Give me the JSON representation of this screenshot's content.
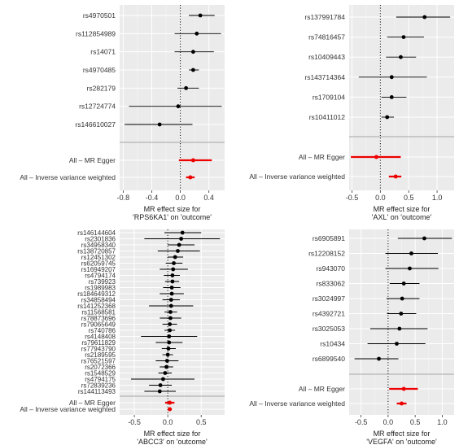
{
  "chart_data": [
    {
      "type": "forest",
      "xlabel": [
        "MR effect size for",
        "'RPS6KA1' on 'outcome'"
      ],
      "xticks": [
        "-0.8",
        "-0.4",
        "0.0",
        "0.4"
      ],
      "xlim": [
        -0.85,
        0.62
      ],
      "grid": true,
      "snps": [
        {
          "label": "rs4970501",
          "est": 0.28,
          "lo": 0.12,
          "hi": 0.48
        },
        {
          "label": "rs112854989",
          "est": 0.23,
          "lo": -0.08,
          "hi": 0.57
        },
        {
          "label": "rs14071",
          "est": 0.18,
          "lo": -0.08,
          "hi": 0.47
        },
        {
          "label": "rs4970485",
          "est": 0.18,
          "lo": 0.12,
          "hi": 0.26
        },
        {
          "label": "rs282179",
          "est": 0.08,
          "lo": -0.04,
          "hi": 0.26
        },
        {
          "label": "rs12724774",
          "est": -0.03,
          "lo": -0.72,
          "hi": 0.58
        },
        {
          "label": "rs146610027",
          "est": -0.29,
          "lo": -0.78,
          "hi": 0.17
        }
      ],
      "summaries": [
        {
          "label": "All – MR Egger",
          "est": 0.18,
          "lo": -0.02,
          "hi": 0.44
        },
        {
          "label": "All – Inverse variance weighted",
          "est": 0.14,
          "lo": 0.08,
          "hi": 0.2
        }
      ]
    },
    {
      "type": "forest",
      "xlabel": [
        "MR effect size for",
        "'AXL' on 'outcome'"
      ],
      "xticks": [
        "-0.5",
        "0.0",
        "0.5",
        "1.0"
      ],
      "xlim": [
        -0.55,
        1.3
      ],
      "grid": true,
      "snps": [
        {
          "label": "rs137991784",
          "est": 0.78,
          "lo": 0.28,
          "hi": 1.23
        },
        {
          "label": "rs74816457",
          "est": 0.41,
          "lo": 0.12,
          "hi": 0.77
        },
        {
          "label": "rs10409443",
          "est": 0.36,
          "lo": 0.1,
          "hi": 0.63
        },
        {
          "label": "rs143714364",
          "est": 0.2,
          "lo": -0.38,
          "hi": 0.82
        },
        {
          "label": "rs1709104",
          "est": 0.2,
          "lo": 0.02,
          "hi": 0.46
        },
        {
          "label": "rs10411012",
          "est": 0.12,
          "lo": 0.02,
          "hi": 0.24
        }
      ],
      "summaries": [
        {
          "label": "All – MR Egger",
          "est": -0.07,
          "lo": -0.52,
          "hi": 0.36
        },
        {
          "label": "All – Inverse variance weighted",
          "est": 0.27,
          "lo": 0.15,
          "hi": 0.37
        }
      ]
    },
    {
      "type": "forest",
      "xlabel": [
        "MR effect size for",
        "'ABCC3' on 'outcome'"
      ],
      "xticks": [
        "-0.5",
        "0.0",
        "0.5"
      ],
      "xlim": [
        -0.72,
        0.85
      ],
      "grid": true,
      "snps": [
        {
          "label": "rs146144604",
          "est": 0.22,
          "lo": -0.05,
          "hi": 0.5
        },
        {
          "label": "rs2301836",
          "est": 0.2,
          "lo": -0.35,
          "hi": 0.78
        },
        {
          "label": "rs34958340",
          "est": 0.17,
          "lo": 0.0,
          "hi": 0.4
        },
        {
          "label": "rs138720857",
          "est": 0.15,
          "lo": -0.15,
          "hi": 0.48
        },
        {
          "label": "rs12451302",
          "est": 0.11,
          "lo": 0.0,
          "hi": 0.23
        },
        {
          "label": "rs62059745",
          "est": 0.09,
          "lo": -0.03,
          "hi": 0.22
        },
        {
          "label": "rs16949207",
          "est": 0.08,
          "lo": -0.12,
          "hi": 0.3
        },
        {
          "label": "rs4794174",
          "est": 0.07,
          "lo": -0.06,
          "hi": 0.18
        },
        {
          "label": "rs739923",
          "est": 0.07,
          "lo": -0.04,
          "hi": 0.17
        },
        {
          "label": "rs1989983",
          "est": 0.06,
          "lo": -0.07,
          "hi": 0.19
        },
        {
          "label": "rs184649312",
          "est": 0.06,
          "lo": -0.12,
          "hi": 0.24
        },
        {
          "label": "rs34858494",
          "est": 0.05,
          "lo": -0.08,
          "hi": 0.18
        },
        {
          "label": "rs141252368",
          "est": 0.05,
          "lo": -0.28,
          "hi": 0.38
        },
        {
          "label": "rs11568581",
          "est": 0.04,
          "lo": -0.05,
          "hi": 0.14
        },
        {
          "label": "rs78873696",
          "est": 0.04,
          "lo": -0.12,
          "hi": 0.2
        },
        {
          "label": "rs79065649",
          "est": 0.03,
          "lo": -0.08,
          "hi": 0.14
        },
        {
          "label": "rs740786",
          "est": 0.03,
          "lo": -0.05,
          "hi": 0.11
        },
        {
          "label": "rs4148408",
          "est": 0.02,
          "lo": -0.4,
          "hi": 0.44
        },
        {
          "label": "rs79611829",
          "est": 0.02,
          "lo": -0.18,
          "hi": 0.22
        },
        {
          "label": "rs77943790",
          "est": 0.01,
          "lo": -0.09,
          "hi": 0.12
        },
        {
          "label": "rs2189595",
          "est": 0.0,
          "lo": -0.08,
          "hi": 0.08
        },
        {
          "label": "rs76521597",
          "est": -0.01,
          "lo": -0.18,
          "hi": 0.16
        },
        {
          "label": "rs2072366",
          "est": -0.02,
          "lo": -0.12,
          "hi": 0.08
        },
        {
          "label": "rs1548529",
          "est": -0.04,
          "lo": -0.14,
          "hi": 0.06
        },
        {
          "label": "rs4794175",
          "est": -0.07,
          "lo": -0.55,
          "hi": 0.4
        },
        {
          "label": "rs72839236",
          "est": -0.11,
          "lo": -0.28,
          "hi": 0.06
        },
        {
          "label": "rs144113493",
          "est": -0.12,
          "lo": -0.35,
          "hi": 0.12
        }
      ],
      "summaries": [
        {
          "label": "All – MR Egger",
          "est": 0.03,
          "lo": -0.04,
          "hi": 0.1
        },
        {
          "label": "All – Inverse variance weighted",
          "est": 0.03,
          "lo": 0.0,
          "hi": 0.06
        }
      ]
    },
    {
      "type": "forest",
      "xlabel": [
        "MR effect size for",
        "'VEGFA' on 'outcome'"
      ],
      "xticks": [
        "-0.5",
        "0.0",
        "0.5",
        "1.0"
      ],
      "xlim": [
        -0.72,
        1.22
      ],
      "grid": true,
      "snps": [
        {
          "label": "rs6905891",
          "est": 0.67,
          "lo": 0.18,
          "hi": 1.18
        },
        {
          "label": "rs12208152",
          "est": 0.43,
          "lo": -0.05,
          "hi": 0.92
        },
        {
          "label": "rs943070",
          "est": 0.4,
          "lo": -0.05,
          "hi": 0.93
        },
        {
          "label": "rs833062",
          "est": 0.29,
          "lo": 0.03,
          "hi": 0.58
        },
        {
          "label": "rs3024997",
          "est": 0.26,
          "lo": -0.03,
          "hi": 0.58
        },
        {
          "label": "rs4392721",
          "est": 0.24,
          "lo": -0.02,
          "hi": 0.52
        },
        {
          "label": "rs3025053",
          "est": 0.21,
          "lo": -0.33,
          "hi": 0.73
        },
        {
          "label": "rs10434",
          "est": 0.16,
          "lo": -0.38,
          "hi": 0.69
        },
        {
          "label": "rs6899540",
          "est": -0.17,
          "lo": -0.62,
          "hi": 0.19
        }
      ],
      "summaries": [
        {
          "label": "All – MR Egger",
          "est": 0.29,
          "lo": 0.02,
          "hi": 0.55
        },
        {
          "label": "All – Inverse variance weighted",
          "est": 0.25,
          "lo": 0.16,
          "hi": 0.34
        }
      ]
    }
  ]
}
